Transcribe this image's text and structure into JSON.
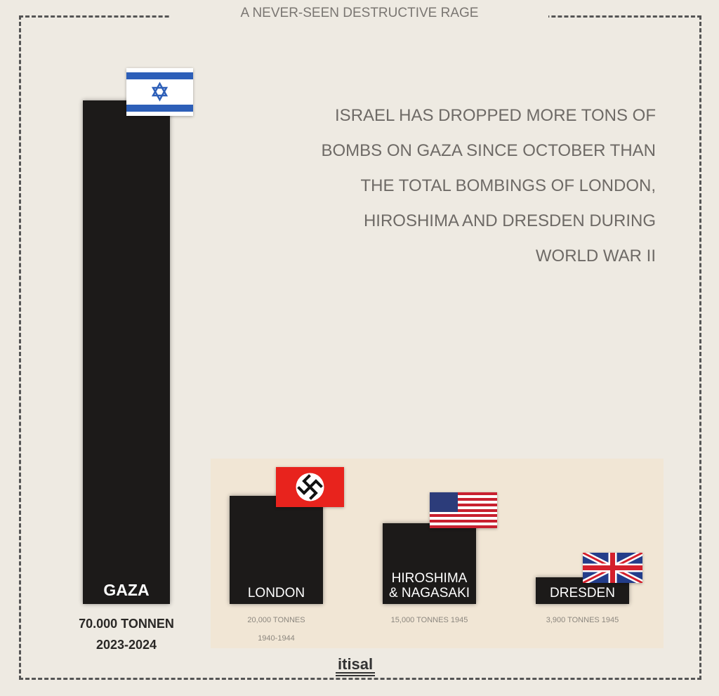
{
  "header": {
    "title": "A NEVER-SEEN DESTRUCTIVE RAGE"
  },
  "headline": [
    "ISRAEL HAS DROPPED MORE TONS OF",
    "BOMBS ON GAZA SINCE OCTOBER THAN",
    "THE TOTAL BOMBINGS OF LONDON,",
    "HIROSHIMA AND DRESDEN DURING",
    "WORLD WAR II"
  ],
  "logo": "itisal",
  "chart_data": {
    "type": "bar",
    "title": "A NEVER-SEEN DESTRUCTIVE RAGE",
    "unit": "tonnes",
    "categories": [
      "GAZA",
      "LONDON",
      "HIROSHIMA & NAGASAKI",
      "DRESDEN"
    ],
    "values": [
      70000,
      20000,
      15000,
      3900
    ],
    "bars": [
      {
        "label": "GAZA",
        "value": 70000,
        "value_label": "70.000 TONNEN",
        "period": "2023-2024",
        "flag": "israel-flag",
        "color": "#1c1a19"
      },
      {
        "label_lines": [
          "LONDON"
        ],
        "value": 20000,
        "value_label": "20,000 TONNES",
        "period": "1940-1944",
        "flag": "nazi-germany-flag",
        "color": "#1c1a19"
      },
      {
        "label_lines": [
          "HIROSHIMA",
          "& NAGASAKI"
        ],
        "value": 15000,
        "value_label": "15,000 TONNES 1945",
        "flag": "usa-flag",
        "color": "#1c1a19"
      },
      {
        "label_lines": [
          "DRESDEN"
        ],
        "value": 3900,
        "value_label": "3,900 TONNES 1945",
        "flag": "uk-flag",
        "color": "#1c1a19"
      }
    ],
    "grid": false
  }
}
